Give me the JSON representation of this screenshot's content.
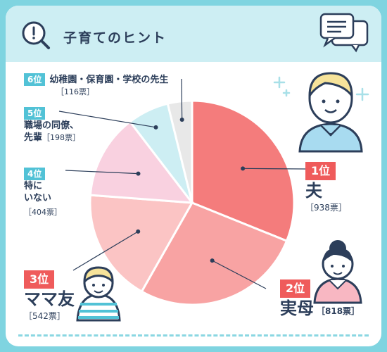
{
  "header": {
    "title": "子育てのヒント"
  },
  "chart_data": {
    "type": "pie",
    "categories": [
      "夫",
      "実母",
      "ママ友",
      "特にいない",
      "職場の同僚、先輩",
      "幼稚園・保育園・学校の先生"
    ],
    "values": [
      938,
      818,
      542,
      404,
      198,
      116
    ],
    "rank_labels": [
      "1位",
      "2位",
      "3位",
      "4位",
      "5位",
      "6位"
    ],
    "vote_labels": [
      "［938票］",
      "［818票］",
      "［542票］",
      "［404票］",
      "［198票］",
      "［116票］"
    ],
    "name_lines": [
      [
        "夫"
      ],
      [
        "実母"
      ],
      [
        "ママ友"
      ],
      [
        "特に",
        "いない"
      ],
      [
        "職場の同僚、",
        "先輩"
      ],
      [
        "幼稚園・保育園・学校の先生"
      ]
    ],
    "colors": [
      "#f47c7c",
      "#f8a3a3",
      "#fbc4c4",
      "#f9d1e0",
      "#cdeef3",
      "#e8e8e8"
    ]
  }
}
